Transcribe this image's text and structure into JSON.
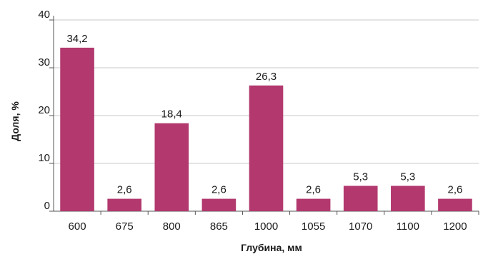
{
  "chart_data": {
    "type": "bar",
    "categories": [
      "600",
      "675",
      "800",
      "865",
      "1000",
      "1055",
      "1070",
      "1100",
      "1200"
    ],
    "values": [
      34.2,
      2.6,
      18.4,
      2.6,
      26.3,
      2.6,
      5.3,
      5.3,
      2.6
    ],
    "value_labels": [
      "34,2",
      "2,6",
      "18,4",
      "2,6",
      "26,3",
      "2,6",
      "5,3",
      "5,3",
      "2,6"
    ],
    "xlabel": "Глубина, мм",
    "ylabel": "Доля, %",
    "ylim": [
      0,
      40
    ],
    "yticks": [
      "0",
      "10",
      "20",
      "30",
      "40"
    ],
    "grid": true,
    "bar_color": "#b2386e",
    "grid_color": "#c8c8c8"
  }
}
